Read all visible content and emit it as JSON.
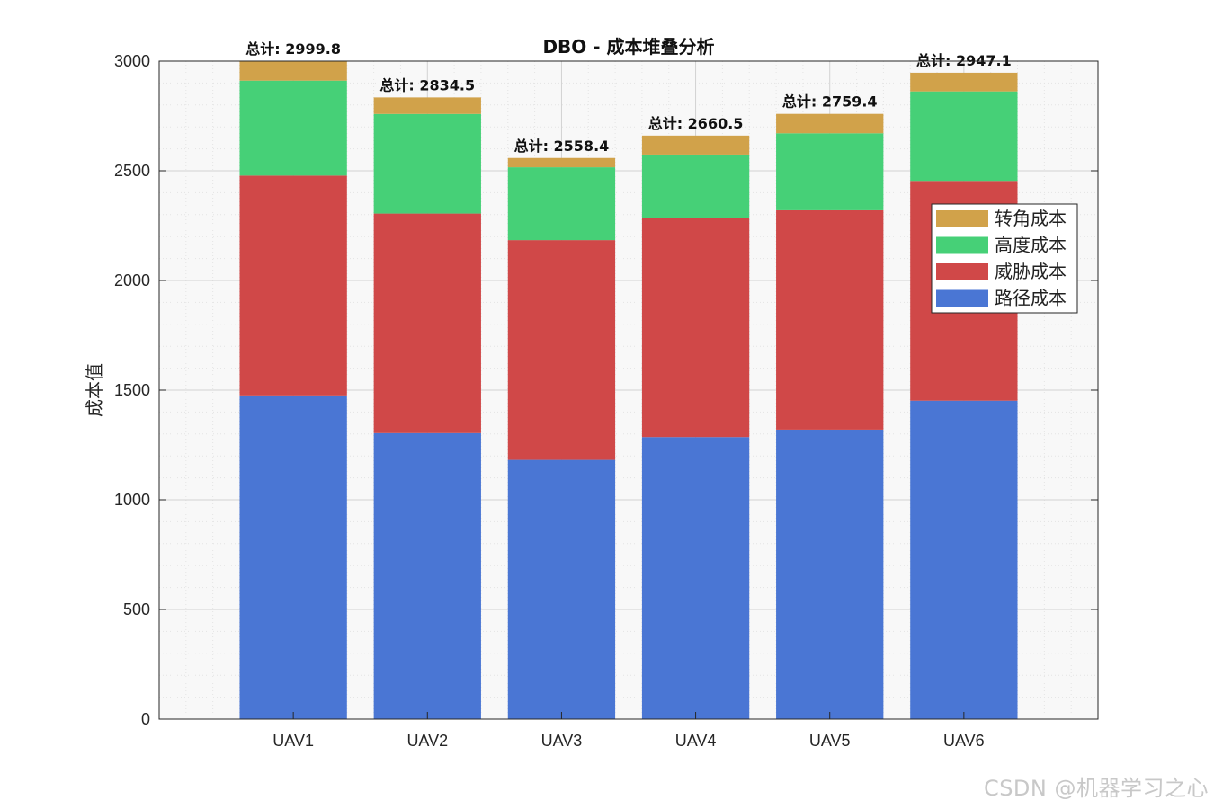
{
  "chart_data": {
    "type": "bar",
    "stacked": true,
    "title": "DBO - 成本堆叠分析",
    "xlabel": "",
    "ylabel": "成本值",
    "ylim": [
      0,
      3000
    ],
    "yticks": [
      0,
      500,
      1000,
      1500,
      2000,
      2500,
      3000
    ],
    "grid": true,
    "legend_position": "right",
    "categories": [
      "UAV1",
      "UAV2",
      "UAV3",
      "UAV4",
      "UAV5",
      "UAV6"
    ],
    "series": [
      {
        "name": "路径成本",
        "color": "#4a76d4",
        "values": [
          1476,
          1304,
          1182,
          1286,
          1320,
          1452
        ]
      },
      {
        "name": "威胁成本",
        "color": "#d04848",
        "values": [
          1002,
          1001,
          1002,
          1000,
          1000,
          1002
        ]
      },
      {
        "name": "高度成本",
        "color": "#46d077",
        "values": [
          433,
          454,
          332,
          288,
          351,
          408
        ]
      },
      {
        "name": "转角成本",
        "color": "#d1a24a",
        "values": [
          88.8,
          75.5,
          42.4,
          86.5,
          88.4,
          85.1
        ]
      }
    ],
    "legend_order": [
      "转角成本",
      "高度成本",
      "威胁成本",
      "路径成本"
    ],
    "total_label_prefix": "总计: ",
    "totals": [
      "2999.8",
      "2834.5",
      "2558.4",
      "2660.5",
      "2759.4",
      "2947.1"
    ]
  },
  "watermark": "CSDN @机器学习之心"
}
